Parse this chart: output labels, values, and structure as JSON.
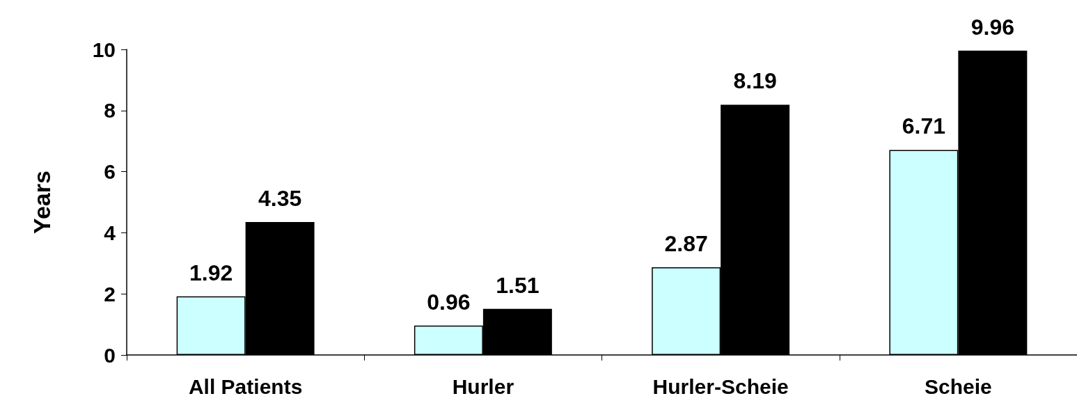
{
  "chart_data": {
    "type": "bar",
    "ylabel": "Years",
    "categories": [
      "All Patients",
      "Hurler",
      "Hurler-Scheie",
      "Scheie"
    ],
    "series": [
      {
        "color": "#ccffff",
        "values": [
          1.92,
          0.96,
          2.87,
          6.71
        ]
      },
      {
        "color": "#000000",
        "values": [
          4.35,
          1.51,
          8.19,
          9.96
        ]
      }
    ],
    "ylim": [
      0,
      10
    ],
    "yticks": [
      0,
      2,
      4,
      6,
      8,
      10
    ],
    "data_labels": true,
    "grid": false
  }
}
